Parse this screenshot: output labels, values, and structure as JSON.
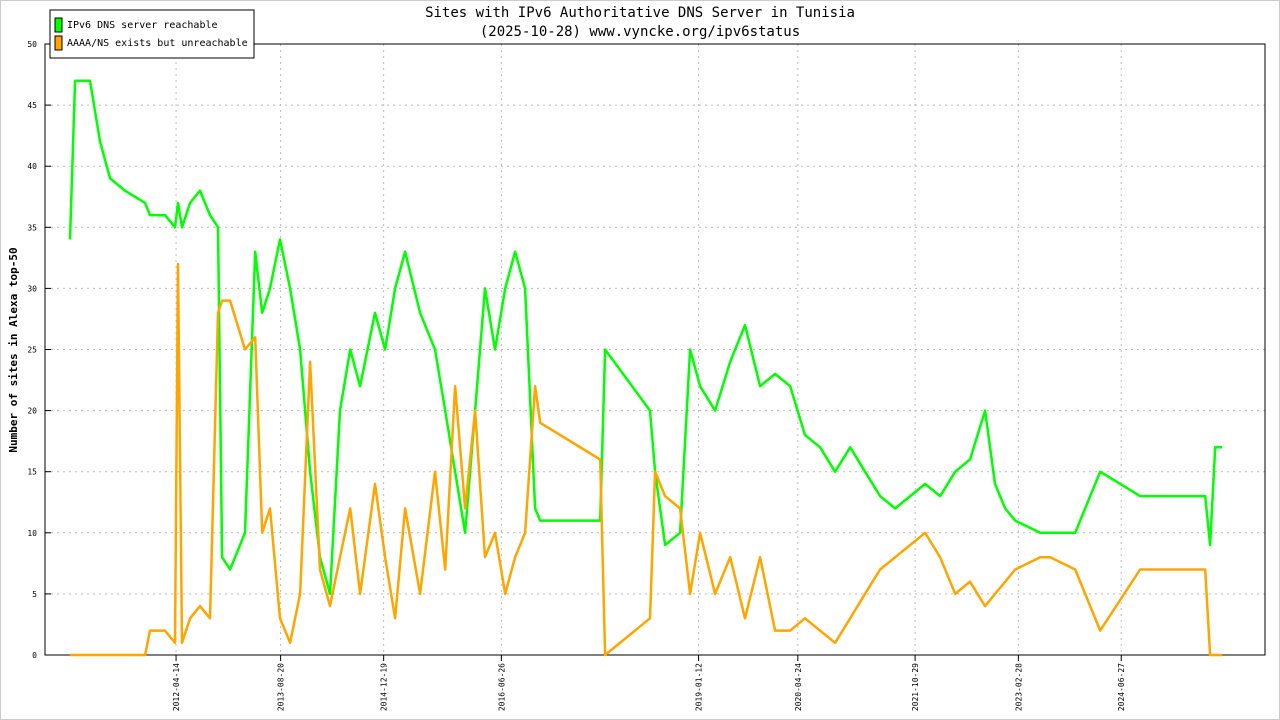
{
  "chart_data": {
    "type": "line",
    "title": "Sites with IPv6 Authoritative DNS Server in Tunisia",
    "subtitle": "(2025-10-28) www.vyncke.org/ipv6status",
    "y_label": "Number of sites in Alexa top-50",
    "x": [
      "2010-12-01",
      "2010-12-25",
      "2011-03-05",
      "2011-04-22",
      "2011-06-08",
      "2011-08-17",
      "2011-11-20",
      "2011-12-13",
      "2012-02-22",
      "2012-04-09",
      "2012-04-23",
      "2012-05-12",
      "2012-06-19",
      "2012-08-05",
      "2012-09-21",
      "2012-10-29",
      "2012-11-17",
      "2012-12-25",
      "2013-03-05",
      "2013-04-22",
      "2013-05-25",
      "2013-07-01",
      "2013-08-17",
      "2013-10-04",
      "2013-11-20",
      "2014-01-06",
      "2014-02-22",
      "2014-04-10",
      "2014-05-27",
      "2014-07-14",
      "2014-08-30",
      "2014-11-08",
      "2014-12-26",
      "2015-02-11",
      "2015-03-30",
      "2015-06-09",
      "2015-08-18",
      "2015-10-05",
      "2015-11-21",
      "2016-01-07",
      "2016-02-23",
      "2016-04-10",
      "2016-05-27",
      "2016-07-14",
      "2016-08-30",
      "2016-10-16",
      "2016-12-02",
      "2016-12-26",
      "2017-10-05",
      "2017-10-28",
      "2018-05-28",
      "2018-06-21",
      "2018-08-07",
      "2018-10-17",
      "2018-12-03",
      "2019-01-19",
      "2019-03-31",
      "2019-06-10",
      "2019-08-19",
      "2019-10-29",
      "2020-01-08",
      "2020-03-19",
      "2020-05-28",
      "2020-08-07",
      "2020-10-17",
      "2020-12-27",
      "2021-03-07",
      "2021-05-17",
      "2021-07-27",
      "2021-10-06",
      "2021-12-15",
      "2022-02-24",
      "2022-05-06",
      "2022-07-15",
      "2022-09-24",
      "2022-11-10",
      "2022-12-28",
      "2023-02-13",
      "2023-06-11",
      "2023-07-28",
      "2023-11-23",
      "2024-03-20",
      "2024-09-24",
      "2025-07-04",
      "2025-07-28",
      "2025-08-20",
      "2025-09-13",
      "2025-10-16"
    ],
    "series": [
      {
        "name": "IPv6 DNS server reachable",
        "color": "#00ff00",
        "values": [
          34,
          47,
          47,
          42,
          39,
          38,
          37,
          36,
          36,
          35,
          37,
          35,
          37,
          38,
          36,
          35,
          8,
          7,
          10,
          33,
          28,
          30,
          34,
          30,
          25,
          15,
          8,
          5,
          20,
          25,
          22,
          28,
          25,
          30,
          33,
          28,
          25,
          20,
          15,
          10,
          20,
          30,
          25,
          30,
          33,
          30,
          12,
          11,
          11,
          25,
          20,
          15,
          9,
          10,
          25,
          22,
          20,
          24,
          27,
          22,
          23,
          22,
          18,
          17,
          15,
          17,
          15,
          13,
          12,
          13,
          14,
          13,
          15,
          16,
          20,
          14,
          12,
          11,
          10,
          10,
          10,
          15,
          13,
          13,
          13,
          9,
          17,
          17
        ]
      },
      {
        "name": "AAAA/NS exists but unreachable",
        "color": "#ffa500",
        "values": [
          0,
          0,
          0,
          0,
          0,
          0,
          0,
          2,
          2,
          1,
          32,
          1,
          3,
          4,
          3,
          28,
          29,
          29,
          25,
          26,
          10,
          12,
          3,
          1,
          5,
          24,
          7,
          4,
          8,
          12,
          5,
          14,
          8,
          3,
          12,
          5,
          15,
          7,
          22,
          12,
          20,
          8,
          10,
          5,
          8,
          10,
          22,
          19,
          16,
          0,
          3,
          15,
          13,
          12,
          5,
          10,
          5,
          8,
          3,
          8,
          2,
          2,
          3,
          2,
          1,
          3,
          5,
          7,
          8,
          9,
          10,
          8,
          5,
          6,
          4,
          5,
          6,
          7,
          8,
          8,
          7,
          2,
          7,
          7,
          7,
          0,
          0,
          0
        ]
      }
    ],
    "xlim": [
      "2010-08-05",
      "2026-05-06"
    ],
    "xticks": [
      "2012-04-14",
      "2013-08-20",
      "2014-12-19",
      "2016-06-26",
      "2019-01-12",
      "2020-04-24",
      "2021-10-29",
      "2023-02-28",
      "2024-06-27"
    ],
    "ylim": [
      0,
      50
    ],
    "yticks": [
      0,
      5,
      10,
      15,
      20,
      25,
      30,
      35,
      40,
      45,
      50
    ],
    "grid": true,
    "legend": "top-left"
  }
}
